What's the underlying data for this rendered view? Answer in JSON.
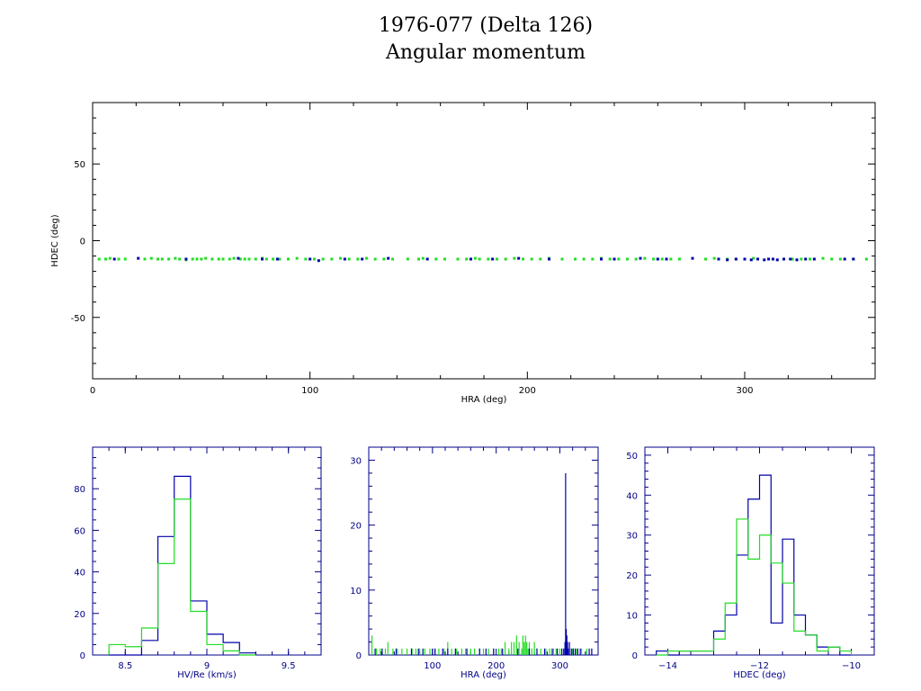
{
  "title": "1976-077 (Delta 126)",
  "subtitle": "Angular momentum",
  "colors": {
    "primary": "#0000aa",
    "secondary": "#22dd22",
    "axis": "#000000",
    "hist_axis": "#000088"
  },
  "chart_data": [
    {
      "type": "scatter",
      "xlabel": "HRA (deg)",
      "ylabel": "HDEC (deg)",
      "xlim": [
        0,
        360
      ],
      "ylim": [
        -90,
        90
      ],
      "xticks": [
        0,
        100,
        200,
        300
      ],
      "yticks": [
        -50,
        0,
        50
      ],
      "series": [
        {
          "color": "#22dd22",
          "x": [
            3,
            6,
            8,
            12,
            15,
            24,
            27,
            30,
            32,
            35,
            38,
            40,
            43,
            46,
            48,
            50,
            52,
            55,
            58,
            60,
            63,
            65,
            68,
            70,
            72,
            75,
            78,
            80,
            83,
            86,
            90,
            94,
            98,
            102,
            106,
            110,
            114,
            118,
            122,
            126,
            130,
            134,
            138,
            145,
            150,
            152,
            158,
            162,
            168,
            172,
            176,
            178,
            182,
            186,
            190,
            194,
            198,
            202,
            206,
            210,
            216,
            222,
            226,
            230,
            234,
            238,
            242,
            246,
            250,
            254,
            258,
            262,
            266,
            270,
            282,
            286,
            288,
            292,
            296,
            300,
            304,
            318,
            322,
            326,
            330,
            336,
            340,
            344,
            350,
            356
          ],
          "y": [
            -12,
            -12,
            -11.5,
            -12,
            -12,
            -12,
            -11.5,
            -12,
            -12,
            -12,
            -11.5,
            -12,
            -12.5,
            -12,
            -12,
            -12,
            -11.5,
            -12,
            -12,
            -12,
            -12,
            -11.5,
            -12,
            -12,
            -12,
            -12,
            -11.5,
            -12,
            -12,
            -12,
            -12,
            -11.5,
            -12,
            -12,
            -12,
            -12,
            -11.5,
            -12,
            -12,
            -11.5,
            -12,
            -12,
            -12,
            -12,
            -12,
            -11.5,
            -12,
            -12,
            -12,
            -12,
            -11.5,
            -12,
            -12,
            -12,
            -12,
            -11.5,
            -12,
            -12,
            -12,
            -11.5,
            -12,
            -12,
            -12,
            -12,
            -11.5,
            -12,
            -12,
            -12,
            -12,
            -11.5,
            -12,
            -12,
            -12,
            -12,
            -12,
            -11.5,
            -12,
            -12,
            -12,
            -12,
            -11.5,
            -12,
            -12,
            -12,
            -12,
            -11.5,
            -12,
            -12,
            -12,
            -12
          ]
        },
        {
          "color": "#0000aa",
          "x": [
            10,
            21,
            43,
            67,
            78,
            85,
            100,
            104,
            116,
            124,
            136,
            154,
            174,
            184,
            196,
            210,
            234,
            240,
            252,
            260,
            264,
            276,
            288,
            292,
            296,
            300,
            303,
            306,
            309,
            311,
            313,
            315,
            318,
            321,
            324,
            328,
            332,
            346,
            350
          ],
          "y": [
            -12,
            -11.5,
            -12,
            -11.5,
            -12,
            -12,
            -12,
            -13,
            -12,
            -12,
            -11.5,
            -12,
            -12,
            -12,
            -11.5,
            -12,
            -12,
            -12,
            -11.5,
            -12,
            -12,
            -11.5,
            -12,
            -12.5,
            -12,
            -12,
            -12.5,
            -12,
            -12.5,
            -12,
            -12,
            -12.5,
            -12,
            -12,
            -12.5,
            -12,
            -12,
            -12,
            -12
          ]
        }
      ]
    },
    {
      "type": "histogram",
      "xlabel": "HV/Re (km/s)",
      "xlim": [
        8.3,
        9.7
      ],
      "ylim": [
        0,
        100
      ],
      "xticks": [
        8.5,
        9,
        9.5
      ],
      "yticks": [
        0,
        20,
        40,
        60,
        80
      ],
      "bin_edges": [
        8.4,
        8.5,
        8.6,
        8.7,
        8.8,
        8.9,
        9.0,
        9.1,
        9.2,
        9.3
      ],
      "series": [
        {
          "color": "#0000aa",
          "counts": [
            0,
            0,
            7,
            57,
            86,
            26,
            10,
            6,
            1
          ]
        },
        {
          "color": "#22dd22",
          "counts": [
            5,
            4,
            13,
            44,
            75,
            21,
            5,
            2,
            0
          ]
        }
      ]
    },
    {
      "type": "histogram",
      "xlabel": "HRA (deg)",
      "xlim": [
        0,
        360
      ],
      "ylim": [
        0,
        32
      ],
      "xticks": [
        100,
        200,
        300
      ],
      "yticks": [
        0,
        10,
        20,
        30
      ],
      "series": [
        {
          "color": "#22dd22",
          "positions": [
            5,
            12,
            18,
            26,
            30,
            38,
            45,
            52,
            60,
            68,
            74,
            80,
            88,
            96,
            104,
            110,
            118,
            124,
            130,
            138,
            146,
            152,
            160,
            166,
            174,
            180,
            188,
            196,
            204,
            208,
            214,
            220,
            224,
            228,
            232,
            236,
            240,
            242,
            244,
            246,
            248,
            250,
            252,
            256,
            260,
            264,
            270,
            278,
            284,
            290,
            294,
            300,
            320,
            326,
            334,
            342,
            350
          ],
          "counts": [
            3,
            1,
            1,
            1,
            2,
            1,
            1,
            1,
            1,
            1,
            1,
            1,
            1,
            1,
            1,
            1,
            1,
            2,
            1,
            1,
            1,
            1,
            1,
            1,
            1,
            1,
            1,
            1,
            1,
            1,
            2,
            1,
            2,
            2,
            3,
            2,
            1,
            3,
            2,
            3,
            2,
            1,
            2,
            1,
            2,
            1,
            1,
            1,
            1,
            1,
            1,
            1,
            1,
            1,
            1,
            1,
            1
          ]
        },
        {
          "color": "#0000aa",
          "positions": [
            10,
            21,
            43,
            67,
            78,
            85,
            100,
            104,
            116,
            124,
            136,
            154,
            174,
            184,
            196,
            210,
            234,
            252,
            264,
            276,
            288,
            296,
            303,
            306,
            308,
            309,
            310,
            311,
            312,
            313,
            315,
            318,
            321,
            324,
            328,
            332,
            346,
            350
          ],
          "counts": [
            1,
            1,
            1,
            1,
            1,
            1,
            1,
            1,
            1,
            1,
            1,
            1,
            1,
            1,
            1,
            1,
            1,
            1,
            1,
            1,
            1,
            1,
            1,
            1,
            2,
            28,
            4,
            3,
            2,
            1,
            2,
            1,
            1,
            1,
            1,
            1,
            1,
            1
          ]
        }
      ]
    },
    {
      "type": "histogram",
      "xlabel": "HDEC (deg)",
      "xlim": [
        -14.5,
        -9.5
      ],
      "ylim": [
        0,
        52
      ],
      "xticks": [
        -14,
        -12,
        -10
      ],
      "yticks": [
        0,
        10,
        20,
        30,
        40,
        50
      ],
      "bin_edges": [
        -14.25,
        -14.0,
        -13.75,
        -13.5,
        -13.25,
        -13.0,
        -12.75,
        -12.5,
        -12.25,
        -12.0,
        -11.75,
        -11.5,
        -11.25,
        -11.0,
        -10.75,
        -10.5,
        -10.25,
        -10.0
      ],
      "series": [
        {
          "color": "#0000aa",
          "counts": [
            1,
            0,
            1,
            1,
            1,
            6,
            10,
            25,
            39,
            45,
            8,
            29,
            10,
            5,
            2,
            2,
            0
          ]
        },
        {
          "color": "#22dd22",
          "counts": [
            0,
            1,
            1,
            1,
            1,
            4,
            13,
            34,
            24,
            30,
            23,
            18,
            6,
            5,
            1,
            2,
            1
          ]
        }
      ]
    }
  ]
}
